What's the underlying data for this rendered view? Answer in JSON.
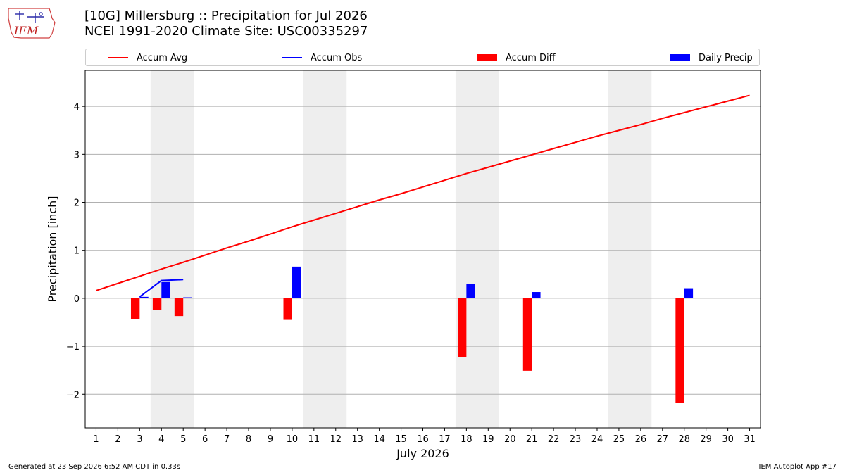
{
  "logo": {
    "text": "IEM"
  },
  "header": {
    "title": "[10G] Millersburg :: Precipitation for Jul 2026",
    "subtitle": "NCEI 1991-2020 Climate Site: USC00335297"
  },
  "footer": {
    "generated": "Generated at 23 Sep 2026 6:52 AM CDT in 0.33s",
    "app": "IEM Autoplot App #17"
  },
  "chart_data": {
    "type": "bar",
    "xlabel": "July 2026",
    "ylabel": "Precipitation [inch]",
    "xlim": [
      0.5,
      31.5
    ],
    "ylim": [
      -2.7,
      4.75
    ],
    "grid": "horizontal",
    "legend_placement": "top, above plot",
    "x_ticks": [
      1,
      2,
      3,
      4,
      5,
      6,
      7,
      8,
      9,
      10,
      11,
      12,
      13,
      14,
      15,
      16,
      17,
      18,
      19,
      20,
      21,
      22,
      23,
      24,
      25,
      26,
      27,
      28,
      29,
      30,
      31
    ],
    "y_ticks": [
      -2,
      -1,
      0,
      1,
      2,
      3,
      4
    ],
    "y_tick_labels": [
      "−2",
      "−1",
      "0",
      "1",
      "2",
      "3",
      "4"
    ],
    "weekend_shading": [
      [
        3.5,
        5.5
      ],
      [
        10.5,
        12.5
      ],
      [
        17.5,
        19.5
      ],
      [
        24.5,
        26.5
      ]
    ],
    "colors": {
      "avg": "#ff0000",
      "obs": "#0000ff",
      "diff": "#ff0000",
      "daily": "#0000ff",
      "weekend": "#eeeeee",
      "grid": "#b0b0b0"
    },
    "series": [
      {
        "name": "Accum Avg",
        "kind": "line",
        "color": "#ff0000",
        "x": [
          1,
          2,
          3,
          4,
          5,
          6,
          7,
          8,
          9,
          10,
          11,
          12,
          13,
          14,
          15,
          16,
          17,
          18,
          19,
          20,
          21,
          22,
          23,
          24,
          25,
          26,
          27,
          28,
          29,
          30,
          31
        ],
        "values": [
          0.16,
          0.31,
          0.46,
          0.61,
          0.75,
          0.9,
          1.05,
          1.19,
          1.34,
          1.49,
          1.63,
          1.77,
          1.91,
          2.05,
          2.18,
          2.32,
          2.46,
          2.6,
          2.73,
          2.86,
          2.99,
          3.12,
          3.25,
          3.38,
          3.5,
          3.62,
          3.75,
          3.87,
          3.99,
          4.11,
          4.23
        ]
      },
      {
        "name": "Accum Obs",
        "kind": "line",
        "color": "#0000ff",
        "x": [
          3,
          4,
          5
        ],
        "values": [
          0.03,
          0.37,
          0.39
        ]
      },
      {
        "name": "Accum Diff",
        "kind": "bar",
        "color": "#ff0000",
        "x": [
          3,
          4,
          5,
          10,
          18,
          21,
          28
        ],
        "values": [
          -0.43,
          -0.24,
          -0.37,
          -0.45,
          -1.23,
          -1.51,
          -2.18
        ]
      },
      {
        "name": "Daily Precip",
        "kind": "bar",
        "color": "#0000ff",
        "x": [
          3,
          4,
          5,
          10,
          18,
          21,
          28
        ],
        "values": [
          0.03,
          0.34,
          0.02,
          0.66,
          0.3,
          0.13,
          0.21
        ]
      }
    ]
  }
}
